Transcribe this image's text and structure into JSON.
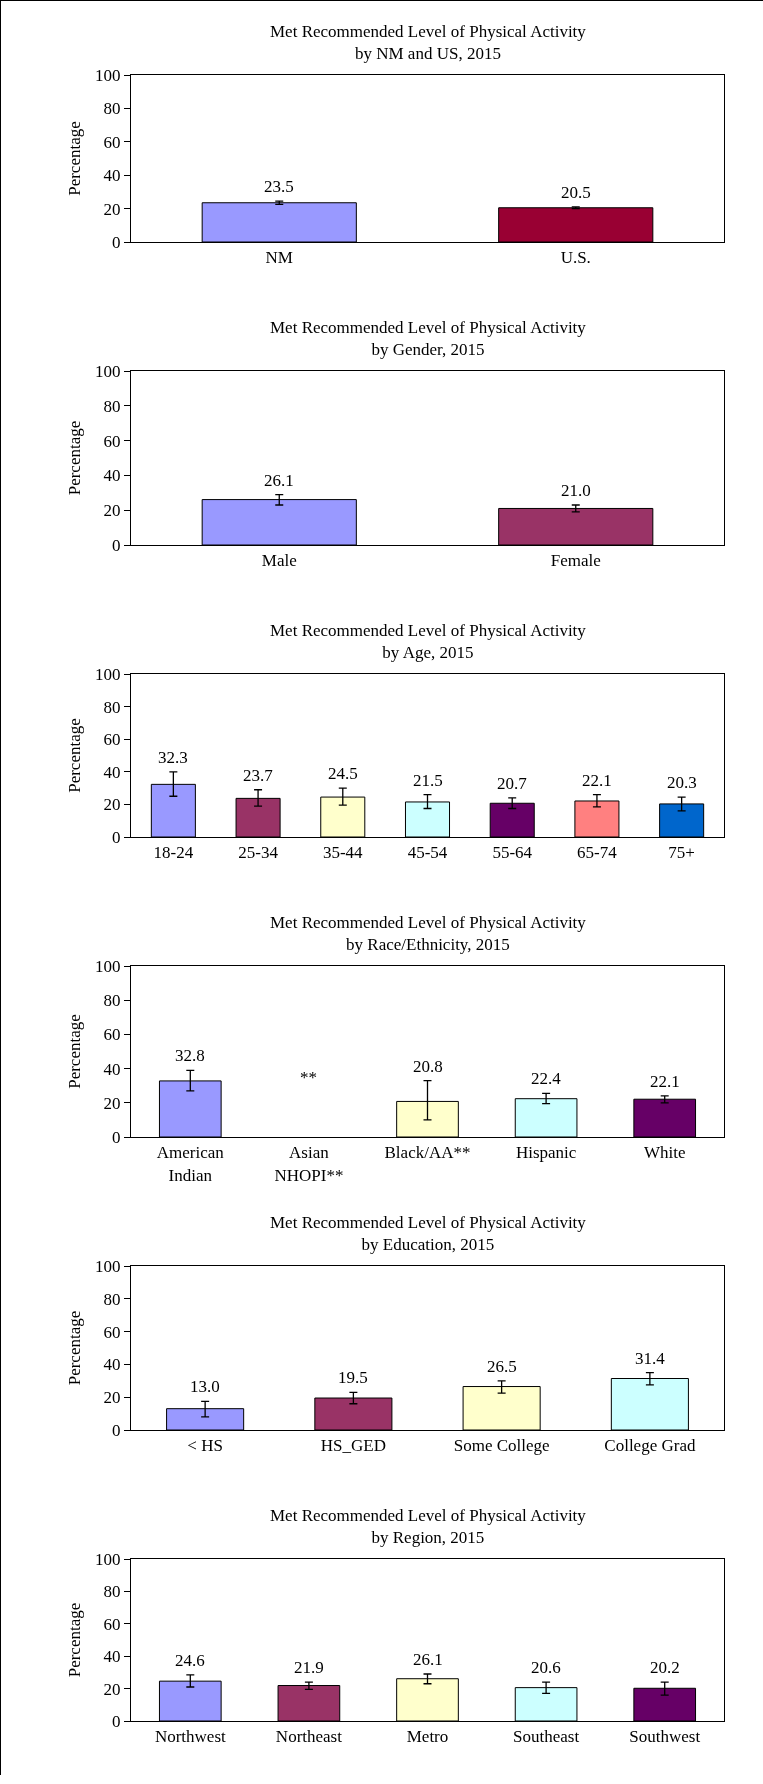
{
  "chart_data": [
    {
      "type": "bar",
      "title": "Met Recommended Level of Physical Activity\nby NM and US, 2015",
      "ylabel": "Percentage",
      "categories": [
        "NM",
        "U.S."
      ],
      "values": [
        23.5,
        20.5
      ],
      "colors": [
        "#9999ff",
        "#990033"
      ],
      "errors": [
        [
          22.5,
          24.5
        ],
        [
          20,
          21
        ]
      ],
      "value_labels": [
        "23.5",
        "20.5"
      ],
      "ylim": [
        0,
        100
      ],
      "yticks": [
        0,
        20,
        40,
        60,
        80,
        100
      ],
      "grid": false
    },
    {
      "type": "bar",
      "title": "Met Recommended Level of Physical Activity\nby Gender, 2015",
      "ylabel": "Percentage",
      "categories": [
        "Male",
        "Female"
      ],
      "values": [
        26.1,
        21.0
      ],
      "colors": [
        "#9999ff",
        "#993366"
      ],
      "errors": [
        [
          23,
          29
        ],
        [
          19,
          23
        ]
      ],
      "value_labels": [
        "26.1",
        "21.0"
      ],
      "ylim": [
        0,
        100
      ],
      "yticks": [
        0,
        20,
        40,
        60,
        80,
        100
      ],
      "grid": false
    },
    {
      "type": "bar",
      "title": "Met Recommended Level of Physical Activity\nby Age, 2015",
      "ylabel": "Percentage",
      "categories": [
        "18-24",
        "25-34",
        "35-44",
        "45-54",
        "55-64",
        "65-74",
        "75+"
      ],
      "values": [
        32.3,
        23.7,
        24.5,
        21.5,
        20.7,
        22.1,
        20.3
      ],
      "colors": [
        "#9999ff",
        "#993366",
        "#ffffcc",
        "#ccffff",
        "#660066",
        "#ff8080",
        "#0066cc"
      ],
      "errors": [
        [
          25,
          40
        ],
        [
          19,
          29
        ],
        [
          19.5,
          30
        ],
        [
          17.5,
          26
        ],
        [
          17.5,
          24
        ],
        [
          18.5,
          26
        ],
        [
          16,
          24.5
        ]
      ],
      "value_labels": [
        "32.3",
        "23.7",
        "24.5",
        "21.5",
        "20.7",
        "22.1",
        "20.3"
      ],
      "ylim": [
        0,
        100
      ],
      "yticks": [
        0,
        20,
        40,
        60,
        80,
        100
      ],
      "grid": false
    },
    {
      "type": "bar",
      "title": "Met Recommended Level of Physical Activity\nby Race/Ethnicity, 2015",
      "ylabel": "Percentage",
      "categories": [
        "American\nIndian",
        "Asian\nNHOPI**",
        "Black/AA**",
        "Hispanic",
        "White"
      ],
      "values": [
        32.8,
        null,
        20.8,
        22.4,
        22.1
      ],
      "colors": [
        "#9999ff",
        "#993366",
        "#ffffcc",
        "#ccffff",
        "#660066"
      ],
      "errors": [
        [
          27,
          39
        ],
        null,
        [
          10,
          33
        ],
        [
          19.5,
          25.5
        ],
        [
          20,
          24
        ]
      ],
      "value_labels": [
        "32.8",
        null,
        "20.8",
        "22.4",
        "22.1"
      ],
      "annotations": [
        "**"
      ],
      "ylim": [
        0,
        100
      ],
      "yticks": [
        0,
        20,
        40,
        60,
        80,
        100
      ],
      "grid": false
    },
    {
      "type": "bar",
      "title": "Met Recommended Level of Physical Activity\nby Education, 2015",
      "ylabel": "Percentage",
      "categories": [
        "< HS",
        "HS_GED",
        "Some College",
        "College Grad"
      ],
      "values": [
        13.0,
        19.5,
        26.5,
        31.4
      ],
      "colors": [
        "#9999ff",
        "#993366",
        "#ffffcc",
        "#ccffff"
      ],
      "errors": [
        [
          8,
          17.5
        ],
        [
          16,
          23
        ],
        [
          22.5,
          30
        ],
        [
          27.5,
          35
        ]
      ],
      "value_labels": [
        "13.0",
        "19.5",
        "26.5",
        "31.4"
      ],
      "ylim": [
        0,
        100
      ],
      "yticks": [
        0,
        20,
        40,
        60,
        80,
        100
      ],
      "grid": false
    },
    {
      "type": "bar",
      "title": "Met Recommended Level of Physical Activity\nby Region, 2015",
      "ylabel": "Percentage",
      "categories": [
        "Northwest",
        "Northeast",
        "Metro",
        "Southeast",
        "Southwest"
      ],
      "values": [
        24.6,
        21.9,
        26.1,
        20.6,
        20.2
      ],
      "colors": [
        "#9999ff",
        "#993366",
        "#ffffcc",
        "#ccffff",
        "#660066"
      ],
      "errors": [
        [
          21,
          28.5
        ],
        [
          19.5,
          24
        ],
        [
          23,
          29
        ],
        [
          17,
          24
        ],
        [
          16,
          24
        ]
      ],
      "value_labels": [
        "24.6",
        "21.9",
        "26.1",
        "20.6",
        "20.2"
      ],
      "ylim": [
        0,
        100
      ],
      "yticks": [
        0,
        20,
        40,
        60,
        80,
        100
      ],
      "grid": false
    }
  ]
}
